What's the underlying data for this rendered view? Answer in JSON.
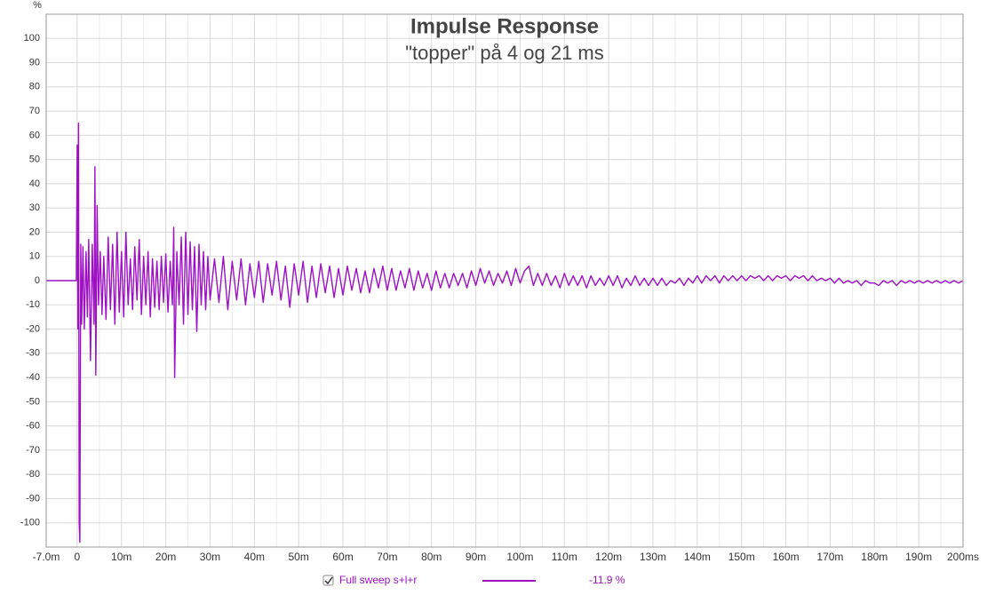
{
  "chart_data": {
    "type": "line",
    "title": "Impulse Response",
    "subtitle": "\"topper\" på 4 og 21 ms",
    "y_label": "%",
    "xlim": [
      -7,
      200
    ],
    "ylim": [
      -110,
      110
    ],
    "xticks": [
      {
        "value": -7,
        "label": "-7.0m"
      },
      0,
      {
        "value": 10,
        "label": "10m"
      },
      {
        "value": 20,
        "label": "20m"
      },
      {
        "value": 30,
        "label": "30m"
      },
      {
        "value": 40,
        "label": "40m"
      },
      {
        "value": 50,
        "label": "50m"
      },
      {
        "value": 60,
        "label": "60m"
      },
      {
        "value": 70,
        "label": "70m"
      },
      {
        "value": 80,
        "label": "80m"
      },
      {
        "value": 90,
        "label": "90m"
      },
      {
        "value": 100,
        "label": "100m"
      },
      {
        "value": 110,
        "label": "110m"
      },
      {
        "value": 120,
        "label": "120m"
      },
      {
        "value": 130,
        "label": "130m"
      },
      {
        "value": 140,
        "label": "140m"
      },
      {
        "value": 150,
        "label": "150m"
      },
      {
        "value": 160,
        "label": "160m"
      },
      {
        "value": 170,
        "label": "170m"
      },
      {
        "value": 180,
        "label": "180m"
      },
      {
        "value": 190,
        "label": "190m"
      },
      {
        "value": 200,
        "label": "200ms"
      }
    ],
    "xminorticks": [
      5,
      15,
      25,
      35,
      45,
      55,
      65,
      75,
      85,
      95,
      105,
      115,
      125,
      135,
      145,
      155,
      165,
      175,
      185,
      195
    ],
    "yticks": [
      -100,
      -90,
      -80,
      -70,
      -60,
      -50,
      -40,
      -30,
      -20,
      -10,
      0,
      10,
      20,
      30,
      40,
      50,
      60,
      70,
      80,
      90,
      100
    ],
    "grid": true,
    "x": [
      -7,
      -0.2,
      0,
      0.15,
      0.3,
      0.45,
      0.6,
      0.8,
      1,
      1.3,
      1.6,
      2,
      2.3,
      2.6,
      3,
      3.4,
      3.8,
      4,
      4.2,
      4.5,
      4.8,
      5.2,
      5.6,
      6,
      6.5,
      7,
      7.5,
      8,
      8.5,
      9,
      9.5,
      10,
      10.5,
      11,
      11.5,
      12,
      12.5,
      13,
      13.5,
      14,
      14.5,
      15,
      15.5,
      16,
      16.5,
      17,
      17.5,
      18,
      18.5,
      19,
      19.5,
      20,
      20.5,
      21,
      21.5,
      21.8,
      22,
      22.5,
      23,
      23.5,
      24,
      24.5,
      25,
      25.5,
      26,
      26.5,
      27,
      27.5,
      28,
      28.5,
      29,
      29.5,
      30,
      31,
      32,
      33,
      34,
      35,
      36,
      37,
      38,
      39,
      40,
      41,
      42,
      43,
      44,
      45,
      46,
      47,
      48,
      49,
      50,
      51,
      52,
      53,
      54,
      55,
      56,
      57,
      58,
      59,
      60,
      61,
      62,
      63,
      64,
      65,
      66,
      67,
      68,
      69,
      70,
      71,
      72,
      73,
      74,
      75,
      76,
      77,
      78,
      79,
      80,
      81,
      82,
      83,
      84,
      85,
      86,
      87,
      88,
      89,
      90,
      91,
      92,
      93,
      94,
      95,
      96,
      97,
      98,
      99,
      100,
      101,
      102,
      103,
      104,
      105,
      106,
      107,
      108,
      109,
      110,
      111,
      112,
      113,
      114,
      115,
      116,
      117,
      118,
      119,
      120,
      121,
      122,
      123,
      124,
      125,
      126,
      127,
      128,
      129,
      130,
      131,
      132,
      133,
      134,
      135,
      136,
      137,
      138,
      139,
      140,
      141,
      142,
      143,
      144,
      145,
      146,
      147,
      148,
      149,
      150,
      151,
      152,
      153,
      154,
      155,
      156,
      157,
      158,
      159,
      160,
      161,
      162,
      163,
      164,
      165,
      166,
      167,
      168,
      169,
      170,
      171,
      172,
      173,
      174,
      175,
      176,
      177,
      178,
      179,
      180,
      181,
      182,
      183,
      184,
      185,
      186,
      187,
      188,
      189,
      190,
      191,
      192,
      193,
      194,
      195,
      196,
      197,
      198,
      199,
      200
    ],
    "series": [
      {
        "name": "Full sweep s+l+r",
        "color": "#9d10c4",
        "legend_value": "-11.9 %",
        "values": [
          0,
          0,
          56,
          -20,
          65,
          -100,
          -108,
          15,
          -18,
          14,
          -20,
          12,
          -15,
          17,
          -33,
          15,
          -18,
          47,
          -39,
          31,
          -10,
          12,
          -14,
          10,
          -16,
          18,
          -12,
          15,
          -18,
          20,
          -13,
          12,
          -15,
          20,
          -10,
          9,
          -12,
          14,
          -8,
          17,
          -14,
          10,
          -10,
          12,
          -15,
          9,
          -11,
          8,
          -12,
          10,
          -9,
          11,
          -13,
          8,
          -10,
          22,
          -40,
          12,
          -10,
          18,
          -18,
          20,
          -14,
          16,
          -12,
          14,
          -21,
          15,
          -10,
          12,
          -12,
          10,
          -8,
          9,
          -9,
          10,
          -12,
          8,
          -8,
          9,
          -10,
          7,
          -7,
          8,
          -9,
          7,
          -6,
          8,
          -8,
          6,
          -11,
          7,
          -6,
          8,
          -9,
          6,
          -7,
          7,
          -5,
          6,
          -7,
          5,
          -6,
          6,
          -4,
          5,
          -5,
          4,
          -5,
          5,
          -3,
          6,
          -4,
          5,
          -4,
          4,
          -3,
          5,
          -4,
          4,
          -3,
          3,
          -4,
          4,
          -3,
          3,
          -3,
          3,
          -2,
          3,
          -3,
          4,
          -2,
          5,
          -1,
          4,
          -2,
          3,
          -1,
          4,
          -2,
          5,
          -1,
          4,
          6,
          -2,
          3,
          -2,
          3,
          -2,
          2,
          -3,
          3,
          -2,
          2,
          -2,
          2,
          -3,
          2,
          -2,
          1,
          -2,
          2,
          -2,
          2,
          -3,
          1,
          -2,
          2,
          -2,
          1,
          -2,
          1,
          -2,
          1,
          -2,
          0,
          -1,
          1,
          -2,
          1,
          -1,
          2,
          -1,
          2,
          0,
          2,
          -1,
          2,
          0,
          2,
          0,
          2,
          0,
          2,
          1,
          2,
          0,
          2,
          0,
          2,
          1,
          2,
          0,
          2,
          1,
          2,
          0,
          2,
          0,
          1,
          0,
          1,
          -1,
          1,
          -1,
          0,
          -1,
          0,
          -2,
          0,
          -1,
          -1,
          -2,
          0,
          -1,
          0,
          -2,
          0,
          -1,
          0,
          -1,
          0,
          -1,
          0,
          -1,
          0,
          -1,
          0,
          -1,
          0,
          -1,
          0
        ]
      }
    ]
  }
}
